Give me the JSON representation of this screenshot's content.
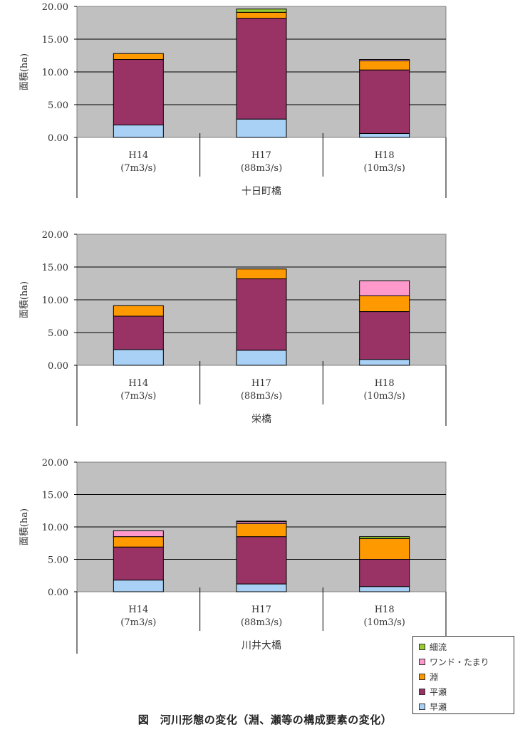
{
  "caption": "図　河川形態の変化（淵、瀬等の構成要素の変化）",
  "series_meta": [
    {
      "key": "hayase",
      "name": "早瀬",
      "color": "#a9d0f5"
    },
    {
      "key": "hirase",
      "name": "平瀬",
      "color": "#993366"
    },
    {
      "key": "fuchi",
      "name": "淵",
      "color": "#ff9900"
    },
    {
      "key": "wando",
      "name": "ワンド・たまり",
      "color": "#ff99cc"
    },
    {
      "key": "sairyu",
      "name": "細流",
      "color": "#99cc33"
    }
  ],
  "legend_order": [
    "細流",
    "ワンド・たまり",
    "淵",
    "平瀬",
    "早瀬"
  ],
  "chart_data": [
    {
      "type": "bar",
      "stacked": true,
      "ylabel": "面積(ha)",
      "ylim": [
        0,
        20
      ],
      "yticks": [
        "0.00",
        "5.00",
        "10.00",
        "15.00",
        "20.00"
      ],
      "categories": [
        "H14",
        "H17",
        "H18"
      ],
      "category_sub": [
        "(7m3/s)",
        "(88m3/s)",
        "(10m3/s)"
      ],
      "group_label": "十日町橋",
      "series": [
        {
          "name": "早瀬",
          "values": [
            1.9,
            2.8,
            0.6
          ]
        },
        {
          "name": "平瀬",
          "values": [
            10.0,
            15.4,
            9.7
          ]
        },
        {
          "name": "淵",
          "values": [
            0.9,
            0.9,
            1.4
          ]
        },
        {
          "name": "ワンド・たまり",
          "values": [
            0,
            0,
            0.2
          ]
        },
        {
          "name": "細流",
          "values": [
            0,
            0.5,
            0
          ]
        }
      ]
    },
    {
      "type": "bar",
      "stacked": true,
      "ylabel": "面積(ha)",
      "ylim": [
        0,
        20
      ],
      "yticks": [
        "0.00",
        "5.00",
        "10.00",
        "15.00",
        "20.00"
      ],
      "categories": [
        "H14",
        "H17",
        "H18"
      ],
      "category_sub": [
        "(7m3/s)",
        "(88m3/s)",
        "(10m3/s)"
      ],
      "group_label": "栄橋",
      "series": [
        {
          "name": "早瀬",
          "values": [
            2.4,
            2.3,
            0.9
          ]
        },
        {
          "name": "平瀬",
          "values": [
            5.1,
            10.9,
            7.3
          ]
        },
        {
          "name": "淵",
          "values": [
            1.6,
            1.5,
            2.4
          ]
        },
        {
          "name": "ワンド・たまり",
          "values": [
            0,
            0,
            2.3
          ]
        },
        {
          "name": "細流",
          "values": [
            0,
            0,
            0
          ]
        }
      ]
    },
    {
      "type": "bar",
      "stacked": true,
      "ylabel": "面積(ha)",
      "ylim": [
        0,
        20
      ],
      "yticks": [
        "0.00",
        "5.00",
        "10.00",
        "15.00",
        "20.00"
      ],
      "categories": [
        "H14",
        "H17",
        "H18"
      ],
      "category_sub": [
        "(7m3/s)",
        "(88m3/s)",
        "(10m3/s)"
      ],
      "group_label": "川井大橋",
      "series": [
        {
          "name": "早瀬",
          "values": [
            1.8,
            1.2,
            0.8
          ]
        },
        {
          "name": "平瀬",
          "values": [
            5.1,
            7.3,
            4.2
          ]
        },
        {
          "name": "淵",
          "values": [
            1.6,
            2.0,
            3.2
          ]
        },
        {
          "name": "ワンド・たまり",
          "values": [
            0.9,
            0.3,
            0
          ]
        },
        {
          "name": "細流",
          "values": [
            0,
            0.1,
            0.3
          ]
        }
      ]
    }
  ]
}
